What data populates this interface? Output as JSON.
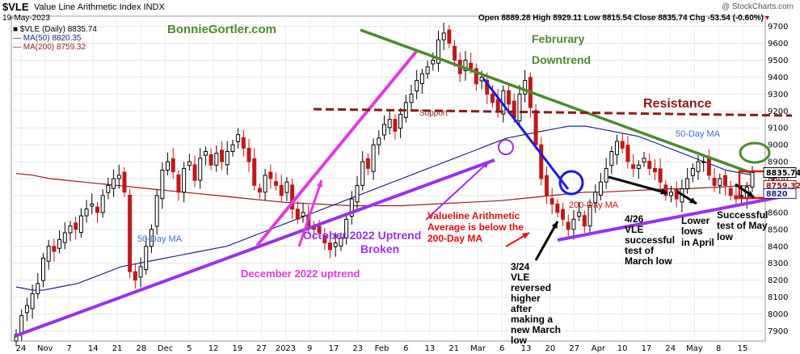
{
  "header": {
    "symbol": "$VLE",
    "index_name": "Value Line Arithmetic Index  INDX",
    "date": "19-May-2023",
    "copyright": "@ StockCharts.com",
    "ohlc": "Open 8889.28  High 8929.11  Low 8815.54  Close 8835.74  Chg -53.54 (-0.60%)",
    "legend_price": "$VLE (Daily) 8835.74",
    "legend_ma50": "MA(50) 8820.35",
    "legend_ma200": "MA(200) 8759.32"
  },
  "colors": {
    "candle": "#000000",
    "ma50": "#1f2a8a",
    "ma200": "#9b1b1b",
    "green_line": "#4c8a2c",
    "magenta": "#e13be0",
    "purple": "#9b30f0",
    "blue_line": "#1a1ae0",
    "resistance": "#8b1a1a",
    "red_box": "#e01010"
  },
  "annotations": {
    "author": "BonnieGortler.com",
    "feb_downtrend_1": "Februrary",
    "feb_downtrend_2": "Downtrend",
    "resistance": "Resistance",
    "support": "Support",
    "ma50_upper": "50-Day MA",
    "ma50_lower": "50-Day MA",
    "ma200": "200-Day MA",
    "oct_uptrend_1": "October 2022 Uptrend",
    "oct_uptrend_2": "Broken",
    "dec_uptrend": "December 2022 uptrend",
    "below_ma_1": "Valueline Arithmetic",
    "below_ma_2": "Average is below the",
    "below_ma_3": "200-Day MA",
    "mar24": [
      "3/24",
      "VLE",
      "reversed",
      "higher",
      "after",
      "making a",
      "new March",
      "low"
    ],
    "apr26": [
      "4/26",
      "VLE",
      "successful",
      "test of",
      "March low"
    ],
    "lower_lows": [
      "Lower",
      "lows",
      "in April"
    ],
    "successful_may": [
      "Successful",
      "test of May",
      "low"
    ],
    "last_price_tag": "8835.74",
    "ma200_tag": "8759.32",
    "ma50_tag": "8820"
  },
  "chart_data": {
    "type": "candlestick",
    "title": "$VLE Value Line Arithmetic Index INDX",
    "x_tick_labels": [
      "24",
      "Nov",
      "7",
      "14",
      "21",
      "28",
      "Dec",
      "5",
      "12",
      "19",
      "27",
      "2023",
      "9",
      "17",
      "23",
      "Feb",
      "6",
      "13",
      "21",
      "Mar",
      "6",
      "13",
      "20",
      "27",
      "Apr",
      "10",
      "17",
      "24",
      "May",
      "8",
      "15"
    ],
    "y_ticks": [
      7900,
      8000,
      8100,
      8200,
      8300,
      8400,
      8500,
      8600,
      8700,
      8800,
      8900,
      9000,
      9100,
      9200,
      9300,
      9400,
      9500,
      9600,
      9700
    ],
    "ylim": [
      7840,
      9760
    ],
    "series": [
      {
        "name": "$VLE (Daily)",
        "close": [
          7880,
          7990,
          8050,
          8120,
          8180,
          8330,
          8400,
          8370,
          8440,
          8480,
          8520,
          8500,
          8580,
          8620,
          8650,
          8600,
          8700,
          8760,
          8800,
          8820,
          8720,
          8250,
          8200,
          8280,
          8400,
          8500,
          8700,
          8850,
          8900,
          8840,
          8720,
          8860,
          8900,
          8790,
          8920,
          8960,
          8880,
          8950,
          8900,
          8960,
          9000,
          9060,
          8980,
          8900,
          8760,
          8720,
          8820,
          8800,
          8760,
          8700,
          8780,
          8620,
          8560,
          8600,
          8520,
          8500,
          8480,
          8420,
          8380,
          8420,
          8450,
          8560,
          8680,
          8760,
          8900,
          8860,
          9000,
          9040,
          9120,
          9150,
          9080,
          9180,
          9250,
          9300,
          9380,
          9420,
          9460,
          9500,
          9620,
          9660,
          9600,
          9500,
          9420,
          9500,
          9450,
          9360,
          9400,
          9300,
          9250,
          9200,
          9320,
          9240,
          9160,
          9300,
          9380,
          9220,
          9000,
          8800,
          8700,
          8650,
          8600,
          8560,
          8500,
          8560,
          8600,
          8520,
          8640,
          8720,
          8780,
          8860,
          8960,
          9020,
          8980,
          8900,
          8860,
          8880,
          8920,
          8860,
          8840,
          8780,
          8700,
          8720,
          8680,
          8740,
          8800,
          8860,
          8900,
          8900,
          8820,
          8760,
          8800,
          8760,
          8700,
          8680,
          8700,
          8750,
          8835.74
        ]
      },
      {
        "name": "MA(50)",
        "values": [
          8160,
          8150,
          8140,
          8140,
          8150,
          8160,
          8170,
          8180,
          8200,
          8220,
          8240,
          8260,
          8280,
          8290,
          8300,
          8310,
          8320,
          8330,
          8340,
          8350,
          8360,
          8370,
          8380,
          8390,
          8400,
          8420,
          8440,
          8460,
          8480,
          8500,
          8520,
          8540,
          8560,
          8580,
          8600,
          8620,
          8640,
          8660,
          8680,
          8700,
          8720,
          8740,
          8760,
          8780,
          8800,
          8820,
          8840,
          8860,
          8880,
          8900,
          8920,
          8940,
          8960,
          8980,
          9000,
          9020,
          9040,
          9050,
          9060,
          9070,
          9080,
          9090,
          9100,
          9110,
          9110,
          9110,
          9100,
          9090,
          9080,
          9070,
          9060,
          9050,
          9030,
          9010,
          8990,
          8970,
          8950,
          8930,
          8910,
          8890,
          8870,
          8850,
          8840,
          8830,
          8820.35
        ]
      },
      {
        "name": "MA(200)",
        "values": [
          8830,
          8820,
          8800,
          8790,
          8780,
          8770,
          8760,
          8750,
          8740,
          8730,
          8720,
          8710,
          8700,
          8690,
          8680,
          8670,
          8660,
          8655,
          8650,
          8645,
          8640,
          8640,
          8640,
          8640,
          8645,
          8650,
          8655,
          8660,
          8665,
          8670,
          8680,
          8690,
          8700,
          8710,
          8720,
          8720,
          8725,
          8730,
          8735,
          8740,
          8740,
          8745,
          8750,
          8755,
          8759.32
        ]
      }
    ],
    "grid": true,
    "legend": "top-left",
    "y_axis_side": "right"
  }
}
